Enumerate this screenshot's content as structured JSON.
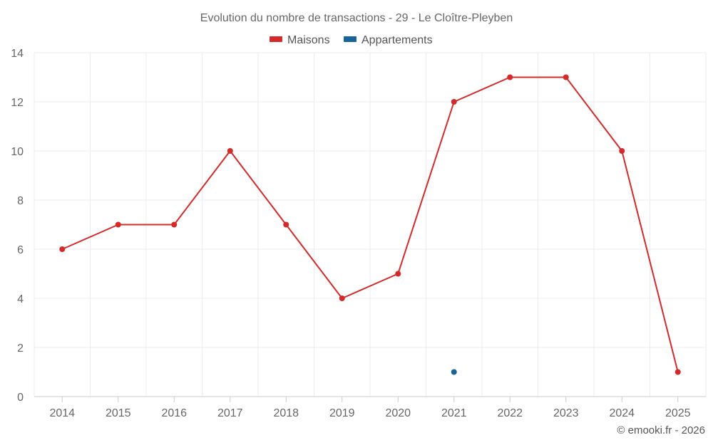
{
  "chart_data": {
    "type": "line",
    "title": "Evolution du nombre de transactions - 29 - Le Cloître-Pleyben",
    "x": [
      "2014",
      "2015",
      "2016",
      "2017",
      "2018",
      "2019",
      "2020",
      "2021",
      "2022",
      "2023",
      "2024",
      "2025"
    ],
    "yticks": [
      "0",
      "2",
      "4",
      "6",
      "8",
      "10",
      "12",
      "14"
    ],
    "ylim": [
      0,
      14
    ],
    "grid": true,
    "legend_position": "top-center",
    "series": [
      {
        "name": "Maisons",
        "color": "#d42a2a",
        "values": [
          6,
          7,
          7,
          10,
          7,
          4,
          5,
          12,
          13,
          13,
          10,
          1
        ]
      },
      {
        "name": "Appartements",
        "color": "#17649a",
        "values": [
          null,
          null,
          null,
          null,
          null,
          null,
          null,
          1,
          null,
          null,
          null,
          null
        ]
      }
    ],
    "credit": "© emooki.fr - 2026"
  }
}
